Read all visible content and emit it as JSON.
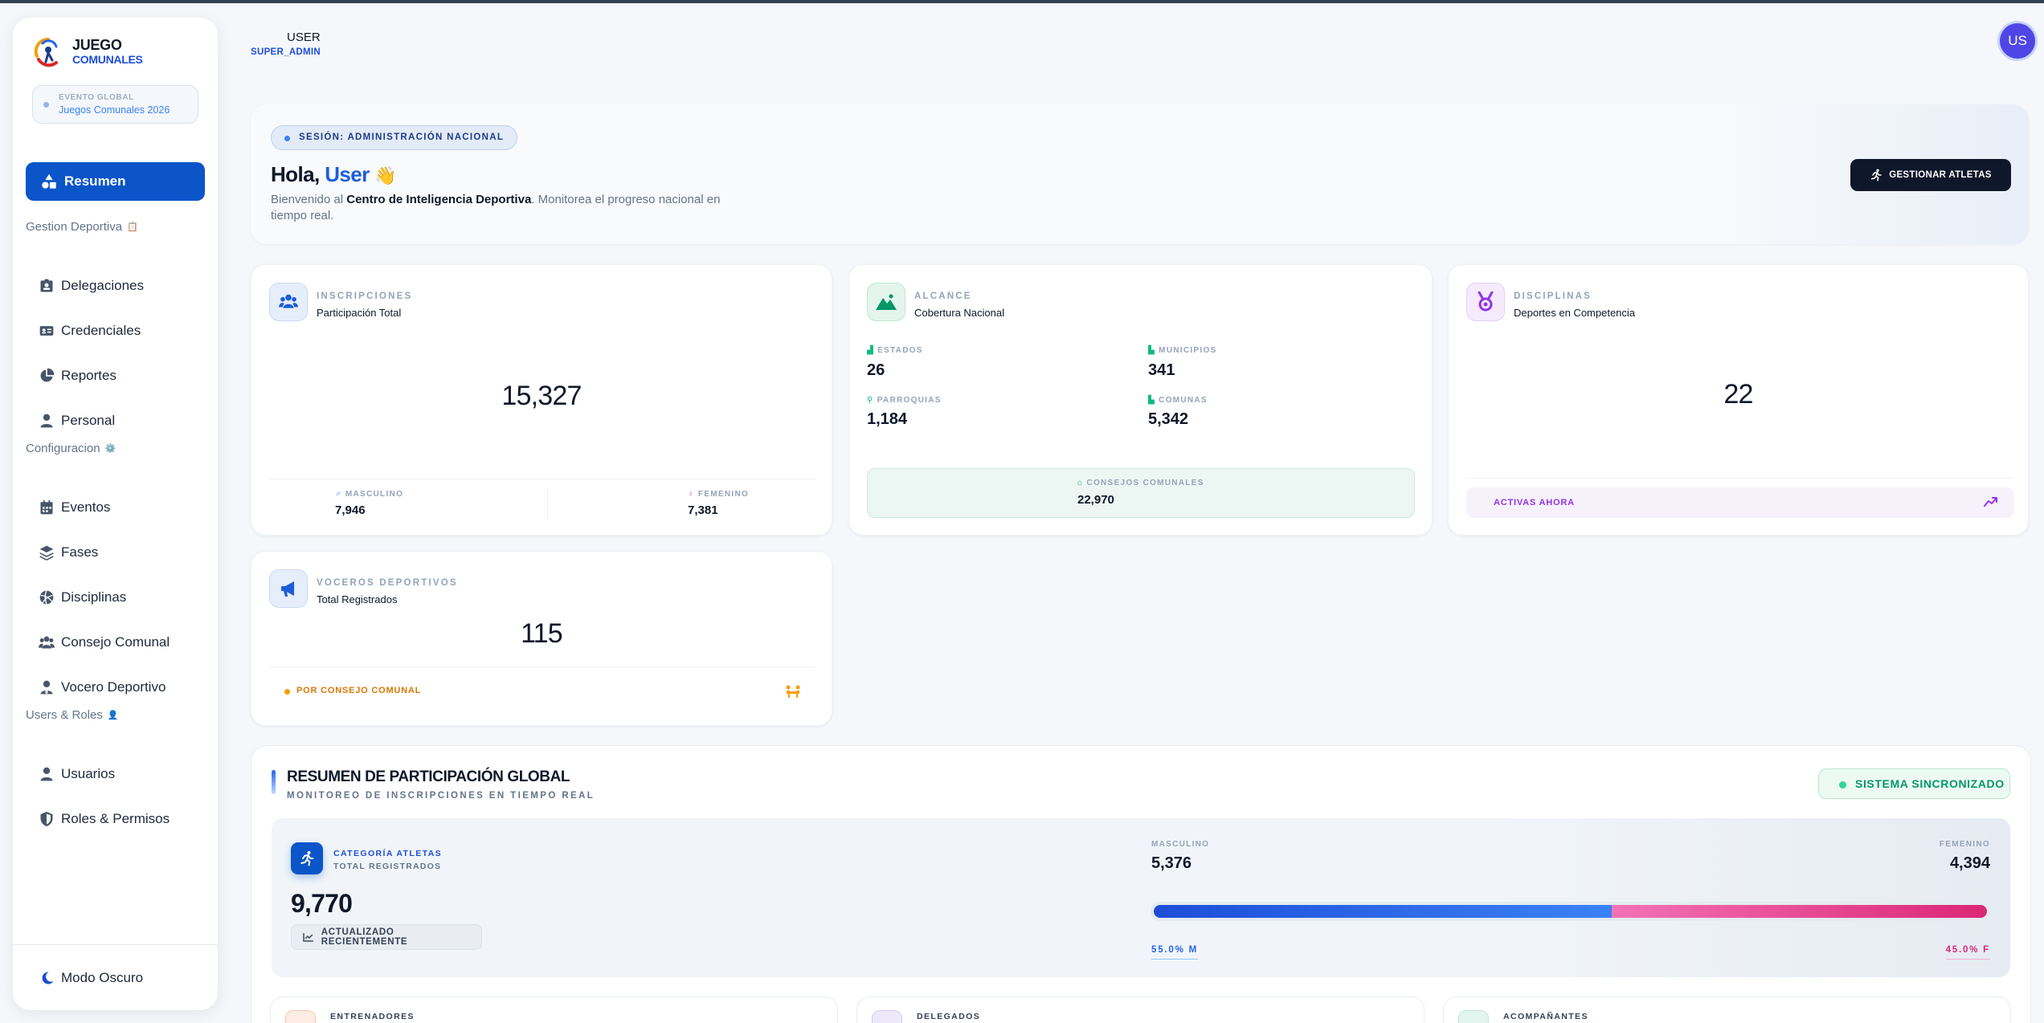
{
  "sidebar": {
    "brand_line1": "JUEGO",
    "brand_line2": "COMUNALES",
    "event_label": "EVENTO GLOBAL",
    "event_name": "Juegos Comunales 2026",
    "active_item": "Resumen",
    "sections": [
      {
        "title": "Gestion Deportiva",
        "items": [
          "Delegaciones",
          "Credenciales",
          "Reportes",
          "Personal"
        ]
      },
      {
        "title": "Configuracion",
        "items": [
          "Eventos",
          "Fases",
          "Disciplinas",
          "Consejo Comunal",
          "Vocero Deportivo"
        ]
      },
      {
        "title": "Users & Roles",
        "items": [
          "Usuarios",
          "Roles & Permisos"
        ]
      }
    ],
    "dark_mode": "Modo Oscuro"
  },
  "topbar": {
    "user_name": "USER",
    "user_role": "SUPER_ADMIN",
    "avatar_initials": "US"
  },
  "hero": {
    "badge": "SESIÓN: ADMINISTRACIÓN NACIONAL",
    "greeting": "Hola,",
    "user": "User",
    "wave": "👋",
    "welcome_pre": "Bienvenido al ",
    "welcome_bold": "Centro de Inteligencia Deportiva",
    "welcome_post": ". Monitorea el progreso nacional en tiempo real.",
    "button": "GESTIONAR ATLETAS"
  },
  "inscripciones": {
    "title": "INSCRIPCIONES",
    "subtitle": "Participación Total",
    "total": "15,327",
    "male_label": "MASCULINO",
    "male": "7,946",
    "female_label": "FEMENINO",
    "female": "7,381"
  },
  "alcance": {
    "title": "ALCANCE",
    "subtitle": "Cobertura Nacional",
    "estados_label": "ESTADOS",
    "estados": "26",
    "municipios_label": "MUNICIPIOS",
    "municipios": "341",
    "parroquias_label": "PARROQUIAS",
    "parroquias": "1,184",
    "comunas_label": "COMUNAS",
    "comunas": "5,342",
    "consejos_label": "CONSEJOS COMUNALES",
    "consejos": "22,970"
  },
  "disciplinas": {
    "title": "DISCIPLINAS",
    "subtitle": "Deportes en Competencia",
    "total": "22",
    "footer": "ACTIVAS AHORA"
  },
  "voceros": {
    "title": "VOCEROS DEPORTIVOS",
    "subtitle": "Total Registrados",
    "total": "115",
    "footer": "POR CONSEJO COMUNAL"
  },
  "resumen": {
    "title": "RESUMEN DE PARTICIPACIÓN GLOBAL",
    "subtitle": "MONITOREO DE INSCRIPCIONES EN TIEMPO REAL",
    "sync": "SISTEMA SINCRONIZADO",
    "cat_label": "CATEGORÍA ATLETAS",
    "cat_sub": "TOTAL REGISTRADOS",
    "total": "9,770",
    "updated": "ACTUALIZADO RECIENTEMENTE",
    "male_label": "MASCULINO",
    "male": "5,376",
    "female_label": "FEMENINO",
    "female": "4,394",
    "male_pct_label": "55.0% M",
    "female_pct_label": "45.0% F",
    "male_fraction": 0.55
  },
  "bottom_cards": [
    "ENTRENADORES",
    "DELEGADOS",
    "ACOMPAÑANTES"
  ],
  "colors": {
    "primary": "#0b55c9",
    "male": "#2563eb",
    "female": "#db2777",
    "success": "#059669"
  }
}
